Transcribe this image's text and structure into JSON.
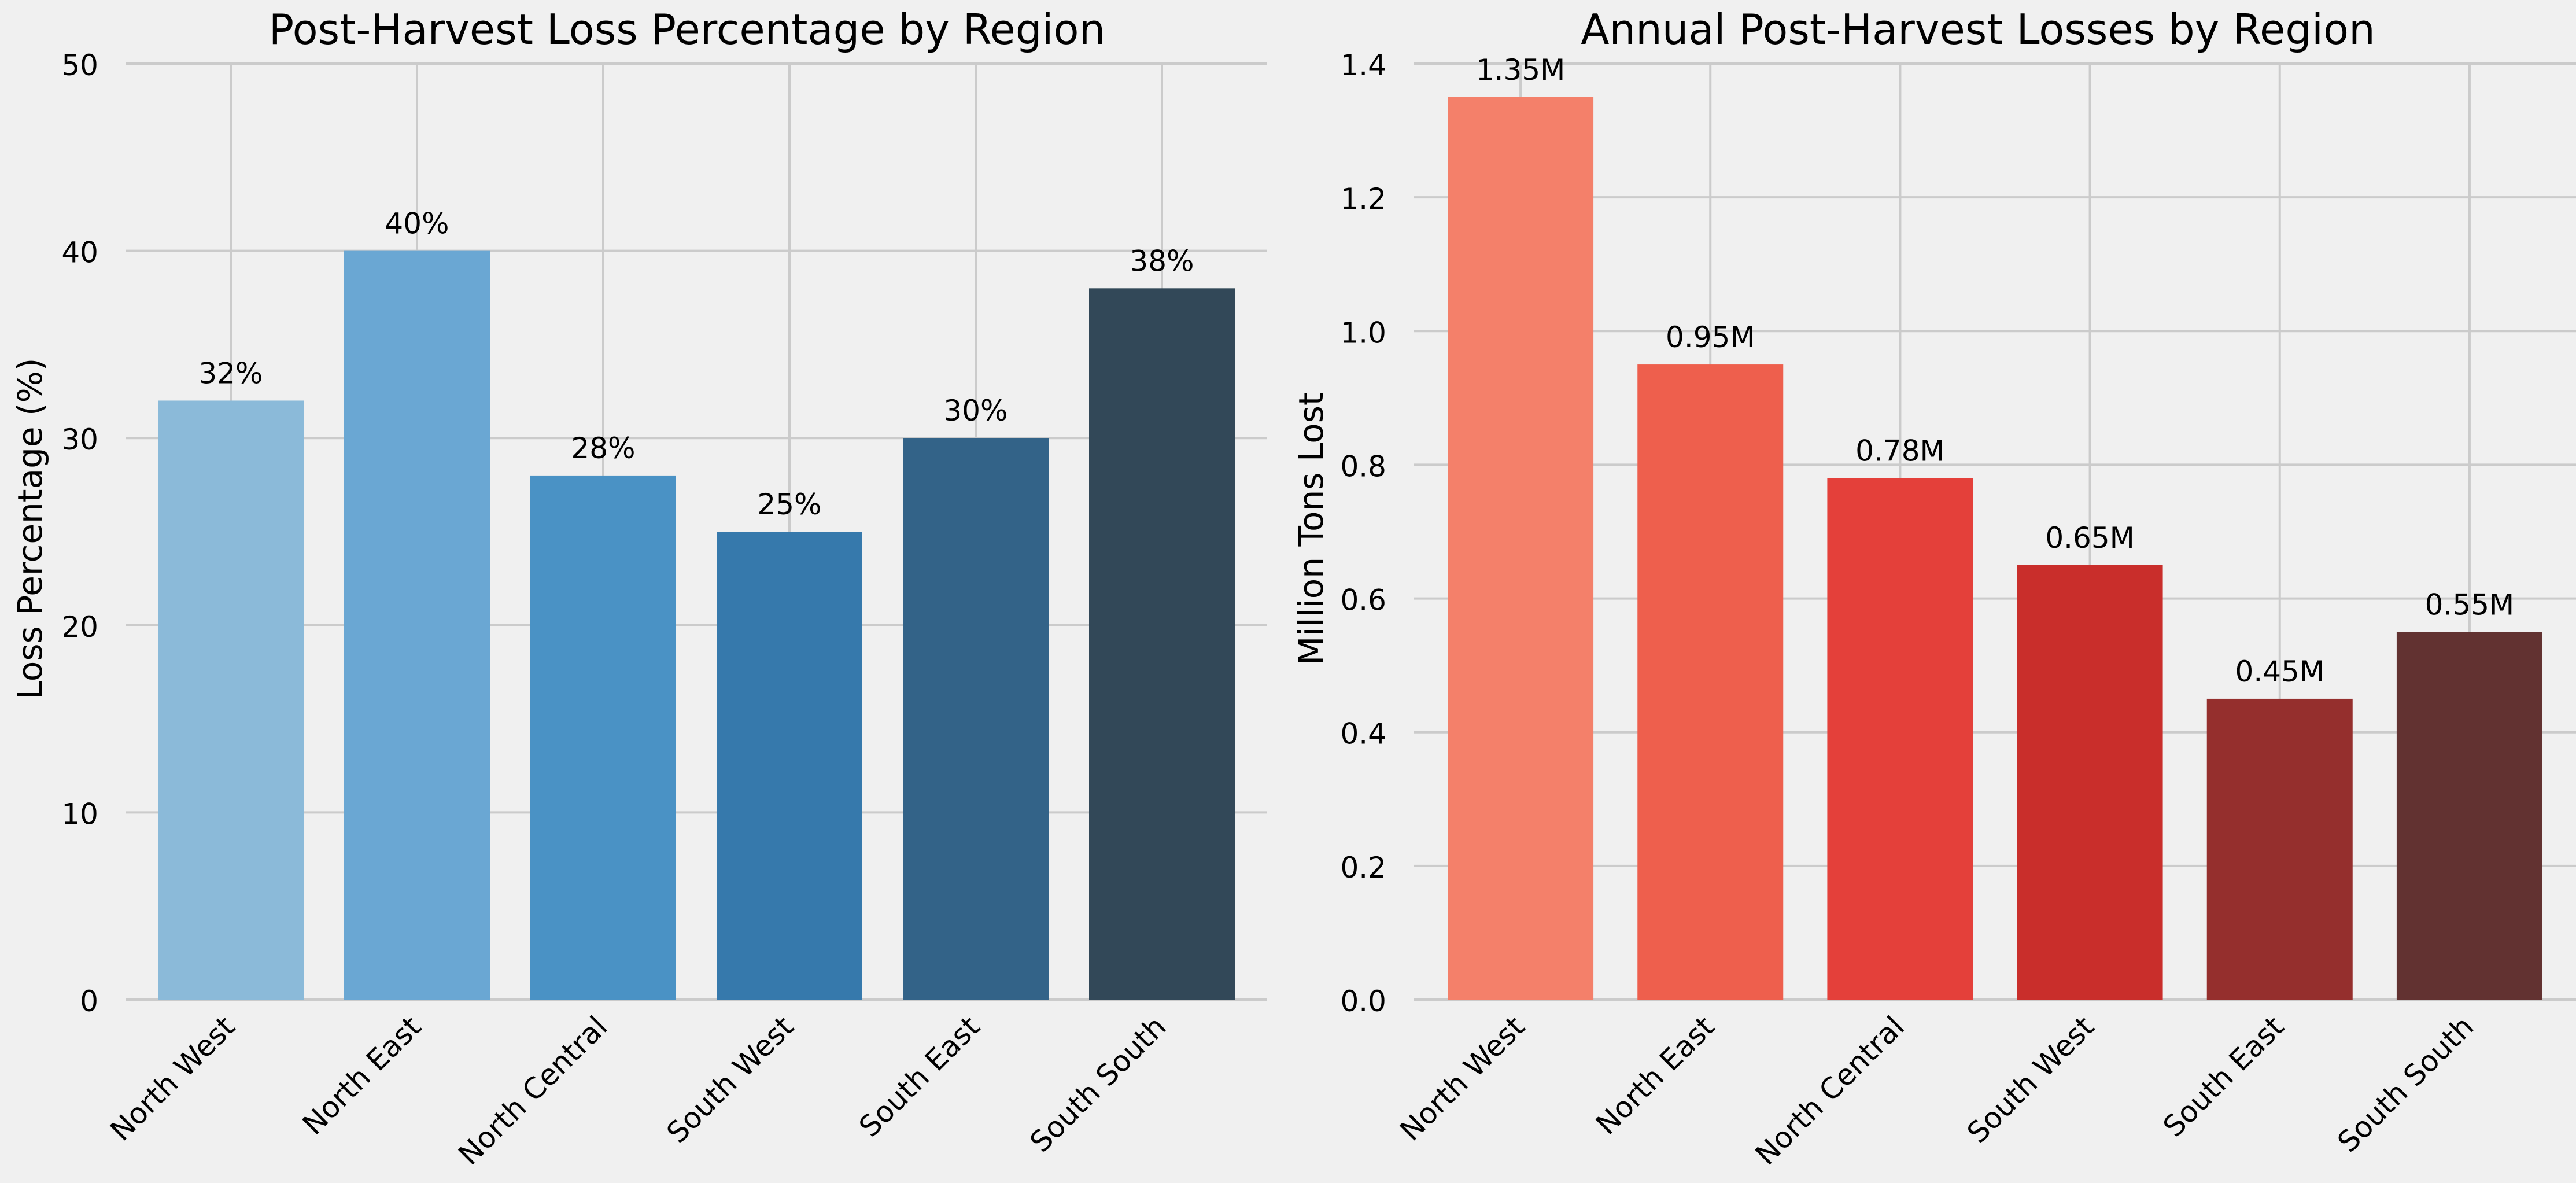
{
  "chart_data": [
    {
      "type": "bar",
      "title": "Post-Harvest Loss Percentage by Region",
      "xlabel": "",
      "ylabel": "Loss Percentage (%)",
      "categories": [
        "North West",
        "North East",
        "North Central",
        "South West",
        "South East",
        "South South"
      ],
      "values": [
        32,
        40,
        28,
        25,
        30,
        38
      ],
      "data_labels": [
        "32%",
        "40%",
        "28%",
        "25%",
        "30%",
        "38%"
      ],
      "colors": [
        "#8bbad9",
        "#6aa7d3",
        "#4a92c5",
        "#3679ac",
        "#336388",
        "#324858"
      ],
      "ylim": [
        0,
        50
      ],
      "yticks": [
        "0",
        "10",
        "20",
        "30",
        "40",
        "50"
      ],
      "grid": true,
      "legend": "none"
    },
    {
      "type": "bar",
      "title": "Annual Post-Harvest Losses by Region",
      "xlabel": "",
      "ylabel": "Million Tons Lost",
      "categories": [
        "North West",
        "North East",
        "North Central",
        "South West",
        "South East",
        "South South"
      ],
      "values": [
        1.35,
        0.95,
        0.78,
        0.65,
        0.45,
        0.55
      ],
      "data_labels": [
        "1.35M",
        "0.95M",
        "0.78M",
        "0.65M",
        "0.45M",
        "0.55M"
      ],
      "colors": [
        "#f4806a",
        "#ee5f4d",
        "#e4403a",
        "#c92e2b",
        "#952f2d",
        "#623231"
      ],
      "ylim": [
        0,
        1.4
      ],
      "yticks": [
        "0.0",
        "0.2",
        "0.4",
        "0.6",
        "0.8",
        "1.0",
        "1.2",
        "1.4"
      ],
      "grid": true,
      "legend": "none"
    }
  ]
}
